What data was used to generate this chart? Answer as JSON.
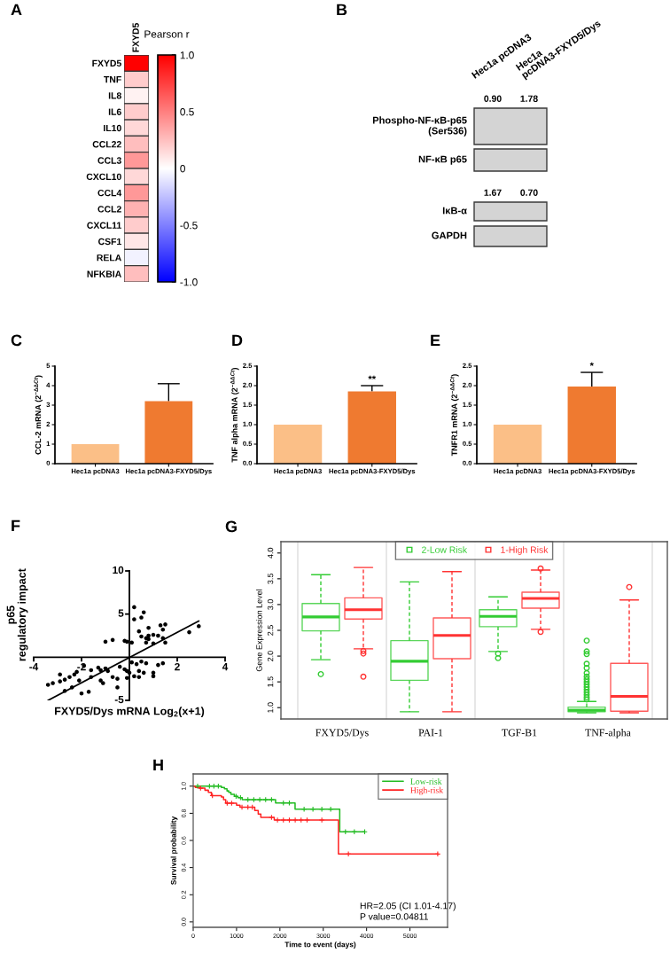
{
  "chart_data": [
    {
      "type": "heatmap",
      "title": "A",
      "categories": [
        "FXYD5"
      ],
      "y_categories": [
        "FXYD5",
        "TNF",
        "IL8",
        "IL6",
        "IL10",
        "CCL22",
        "CCL3",
        "CXCL10",
        "CCL4",
        "CCL2",
        "CXCL11",
        "CSF1",
        "RELA",
        "NFKBIA"
      ],
      "cells": [
        [
          1.0
        ],
        [
          0.2
        ],
        [
          0.05
        ],
        [
          0.2
        ],
        [
          0.15
        ],
        [
          0.25
        ],
        [
          0.4
        ],
        [
          0.15
        ],
        [
          0.4
        ],
        [
          0.3
        ],
        [
          0.2
        ],
        [
          0.1
        ],
        [
          -0.05
        ],
        [
          0.25
        ]
      ],
      "clabel": "Pearson r",
      "clim": [
        -1.0,
        1.0
      ],
      "cticks": [
        {
          "value": 1.0,
          "label": "1.0"
        },
        0.5,
        0,
        -0.5,
        {
          "value": -1.0,
          "label": "-1.0"
        }
      ]
    },
    {
      "type": "other",
      "title": "B",
      "categories": [
        "Hec1a pcDNA3",
        "Hec1a\npcDNA3-FXYD5/Dys"
      ],
      "y_categories": [
        "Phospho-NF-κB-p65\n(Ser536)",
        "NF-κB p65",
        "IκB-α",
        "GAPDH"
      ],
      "cell_labels": [
        [
          "0.90",
          "1.78"
        ],
        null,
        [
          "1.67",
          "0.70"
        ],
        null
      ]
    },
    {
      "type": "bar",
      "title": "C",
      "categories": [
        "Hec1a pcDNA3",
        "Hec1a pcDNA3-FXYD5/Dys"
      ],
      "values": [
        1.0,
        3.2
      ],
      "colors": [
        "#fbbf87",
        "#ef7a30"
      ],
      "errors": [
        null,
        [
          3.2,
          4.1
        ]
      ],
      "ylabel": "CCL-2 mRNA (2$^{−ΔΔCt}$)",
      "ylim": [
        0,
        5
      ],
      "yticks": [
        0,
        1,
        2,
        3,
        4,
        5
      ]
    },
    {
      "type": "bar",
      "title": "D",
      "categories": [
        "Hec1a pcDNA3",
        "Hec1a pcDNA3-FXYD5/Dys"
      ],
      "values": [
        1.0,
        1.85
      ],
      "colors": [
        "#fbbf87",
        "#ef7a30"
      ],
      "errors": [
        null,
        [
          1.85,
          2.0
        ]
      ],
      "ylabel": "TNF alpha mRNA (2$^{−ΔΔCt}$)",
      "ylim": [
        0,
        2.5
      ],
      "yticks": [
        {
          "value": 0,
          "label": "0.0"
        },
        0.5,
        {
          "value": 1,
          "label": "1.0"
        },
        1.5,
        {
          "value": 2,
          "label": "2.0"
        },
        2.5
      ],
      "annotations": [
        {
          "text": "**",
          "x": "Hec1a pcDNA3-FXYD5/Dys",
          "y": 2.0
        }
      ]
    },
    {
      "type": "bar",
      "title": "E",
      "categories": [
        "Hec1a pcDNA3",
        "Hec1a pcDNA3-FXYD5/Dys"
      ],
      "values": [
        1.0,
        1.98
      ],
      "colors": [
        "#fbbf87",
        "#ef7a30"
      ],
      "errors": [
        null,
        [
          1.98,
          2.34
        ]
      ],
      "ylabel": "TNFR1 mRNA (2$^{−ΔΔCt}$)",
      "ylim": [
        0,
        2.5
      ],
      "yticks": [
        {
          "value": 0,
          "label": "0.0"
        },
        0.5,
        {
          "value": 1,
          "label": "1.0"
        },
        1.5,
        {
          "value": 2,
          "label": "2.0"
        },
        2.5
      ],
      "annotations": [
        {
          "text": "*",
          "x": "Hec1a pcDNA3-FXYD5/Dys",
          "y": 2.34
        }
      ]
    },
    {
      "type": "scatter",
      "title": "F",
      "xlabel": "FXYD5/Dys mRNA Log$_{2}$(x+1)",
      "ylabel": "p65\nregulatory impact",
      "xlim": [
        -4,
        4
      ],
      "ylim": [
        -5,
        10
      ],
      "xticks": [
        -4,
        -2,
        2,
        4
      ],
      "yticks": [
        -5,
        5,
        10
      ],
      "series": [
        {
          "type": "scatter",
          "color": "#000000",
          "marker": "circle",
          "x": [
            0.2,
            0.2,
            0.6,
            0.5,
            0.4,
            0.8,
            0.5,
            0.7,
            0.8,
            0.8,
            1.0,
            0.7,
            1.0,
            1.2,
            1.3,
            1.5,
            1.4,
            1.4,
            1.5,
            2.5,
            2.9,
            -1.0,
            -0.7,
            -0.2,
            -0.1,
            0.1,
            -3.4,
            -3.2,
            -2.9,
            -2.7,
            -2.5,
            -2.3,
            -2.2,
            -2.9,
            -2.0,
            -1.7,
            -2.1,
            -1.6,
            -1.6,
            -1.3,
            -1.2,
            -1.2,
            -1.1,
            -1.0,
            -0.9,
            -0.7,
            -0.5,
            -0.5,
            -0.4,
            -0.2,
            -0.1,
            -0.1,
            0.0,
            0.1,
            0.2,
            0.3,
            0.4,
            0.4,
            0.5,
            0.6,
            0.7,
            1.0,
            1.0,
            1.2,
            1.4,
            -2.4,
            -1.9,
            -2.7
          ],
          "values": [
            5.8,
            4.4,
            5.2,
            4.6,
            3.0,
            3.4,
            2.4,
            2.2,
            2.1,
            2.5,
            2.6,
            1.7,
            1.6,
            2.5,
            3.7,
            3.8,
            3.2,
            2.2,
            1.7,
            2.9,
            3.6,
            1.8,
            2.0,
            1.9,
            1.8,
            1.7,
            -3.2,
            -3.0,
            -2.8,
            -2.6,
            -2.3,
            -2.0,
            -1.7,
            -2.0,
            -4.2,
            -4.0,
            -2.7,
            -2.3,
            -1.5,
            -1.2,
            -1.5,
            -2.7,
            -3.0,
            -1.3,
            -1.6,
            -2.3,
            -2.5,
            -3.5,
            -1.1,
            -1.4,
            -2.4,
            -1.6,
            -1.8,
            -0.6,
            -2.2,
            -0.8,
            -1.6,
            -2.3,
            -0.5,
            -1.8,
            -0.7,
            -2.2,
            -1.8,
            -0.9,
            -0.7,
            -3.5,
            -1.0,
            -3.9
          ]
        },
        {
          "type": "line",
          "color": "#000000",
          "x": [
            -3.4,
            2.9
          ],
          "values": [
            -5.0,
            4.2
          ]
        }
      ]
    },
    {
      "type": "box",
      "title": "G",
      "ylabel": "Gene Expression Level",
      "categories": [
        "FXYD5/Dys",
        "PAI-1",
        "TGF-B1",
        "TNF-alpha"
      ],
      "ylim": [
        0.78,
        4.22
      ],
      "yticks": [
        {
          "value": 1,
          "label": "1.0"
        },
        1.5,
        {
          "value": 2,
          "label": "2.0"
        },
        2.5,
        {
          "value": 3,
          "label": "3.0"
        },
        3.5,
        {
          "value": 4,
          "label": "4.0"
        }
      ],
      "grid": "x",
      "legend": "top",
      "series": [
        {
          "name": "2-Low Risk",
          "color": "#33cc33",
          "boxes": [
            {
              "low": 1.93,
              "q1": 2.49,
              "median": 2.76,
              "q3": 3.02,
              "high": 3.58,
              "outliers": [
                1.65
              ]
            },
            {
              "low": 0.92,
              "q1": 1.53,
              "median": 1.9,
              "q3": 2.3,
              "high": 3.44
            },
            {
              "low": 2.09,
              "q1": 2.57,
              "median": 2.77,
              "q3": 2.9,
              "high": 3.15,
              "outliers": [
                2.05,
                1.96
              ]
            },
            {
              "low": 0.9,
              "q1": 0.92,
              "median": 0.95,
              "q3": 1.01,
              "high": 1.12,
              "outliers": [
                2.3,
                2.09,
                2.04,
                1.85,
                1.77,
                1.67,
                1.6,
                1.55,
                1.5,
                1.45,
                1.4,
                1.35,
                1.3,
                1.25,
                1.2,
                1.16
              ]
            }
          ]
        },
        {
          "name": "1-High Risk",
          "color": "#ff3333",
          "boxes": [
            {
              "low": 2.14,
              "q1": 2.72,
              "median": 2.9,
              "q3": 3.13,
              "high": 3.72,
              "outliers": [
                2.1,
                2.05,
                1.6
              ]
            },
            {
              "low": 0.92,
              "q1": 1.95,
              "median": 2.4,
              "q3": 2.74,
              "high": 3.64
            },
            {
              "low": 2.52,
              "q1": 2.93,
              "median": 3.12,
              "q3": 3.24,
              "high": 3.67,
              "outliers": [
                3.7,
                2.47
              ]
            },
            {
              "low": 0.9,
              "q1": 0.93,
              "median": 1.22,
              "q3": 1.86,
              "high": 3.09,
              "outliers": [
                3.34
              ]
            }
          ]
        }
      ]
    },
    {
      "type": "step",
      "title": "H",
      "xlabel": "Time to event (days)",
      "ylabel": "Survival probability",
      "xlim": [
        0,
        5867
      ],
      "ylim": [
        -0.04,
        1.09
      ],
      "xticks": [
        0,
        1000,
        2000,
        3000,
        4000,
        5000
      ],
      "yticks": [
        {
          "value": 0,
          "label": "0.0"
        },
        0.2,
        0.4,
        0.6,
        0.8,
        {
          "value": 1,
          "label": "1.0"
        }
      ],
      "legend": "top right",
      "annotations": [
        "HR=2.05 (CI 1.01-4.17)",
        "P value=0.04811"
      ],
      "series": [
        {
          "name": "Low-risk",
          "color": "#22bb22",
          "x": [
            0,
            650,
            720,
            780,
            820,
            870,
            950,
            1030,
            1130,
            1900,
            2350,
            3380,
            3956
          ],
          "values": [
            1.0,
            0.99,
            0.98,
            0.965,
            0.955,
            0.94,
            0.925,
            0.915,
            0.9,
            0.876,
            0.83,
            0.664,
            0.664
          ]
        },
        {
          "name": "High-risk",
          "color": "#ff2222",
          "x": [
            0,
            50,
            150,
            270,
            350,
            420,
            650,
            700,
            750,
            1000,
            1080,
            1420,
            1500,
            1560,
            1870,
            3350,
            5640
          ],
          "values": [
            1.0,
            0.99,
            0.985,
            0.97,
            0.955,
            0.93,
            0.92,
            0.9,
            0.875,
            0.86,
            0.845,
            0.82,
            0.795,
            0.77,
            0.75,
            0.5,
            0.5
          ]
        },
        {
          "type": "scatter",
          "color": "#22bb22",
          "marker": "cross",
          "x": [
            102,
            375,
            477,
            580,
            989,
            1091,
            1262,
            1398,
            1535,
            1671,
            1807,
            2080,
            2217,
            2558,
            2762,
            2967,
            3171,
            3512,
            3717,
            3956
          ],
          "values": [
            1.0,
            1.0,
            1.0,
            1.0,
            0.925,
            0.915,
            0.9,
            0.9,
            0.9,
            0.9,
            0.9,
            0.876,
            0.876,
            0.83,
            0.83,
            0.83,
            0.83,
            0.664,
            0.664,
            0.664
          ]
        },
        {
          "type": "scatter",
          "color": "#ff2222",
          "marker": "cross",
          "x": [
            170,
            443,
            784,
            887,
            1125,
            1262,
            1364,
            1807,
            1944,
            2080,
            2217,
            2353,
            2489,
            2626,
            2967,
            3580,
            5640
          ],
          "values": [
            0.985,
            0.93,
            0.875,
            0.875,
            0.845,
            0.845,
            0.845,
            0.77,
            0.75,
            0.75,
            0.75,
            0.75,
            0.75,
            0.75,
            0.75,
            0.5,
            0.5
          ]
        }
      ]
    }
  ]
}
